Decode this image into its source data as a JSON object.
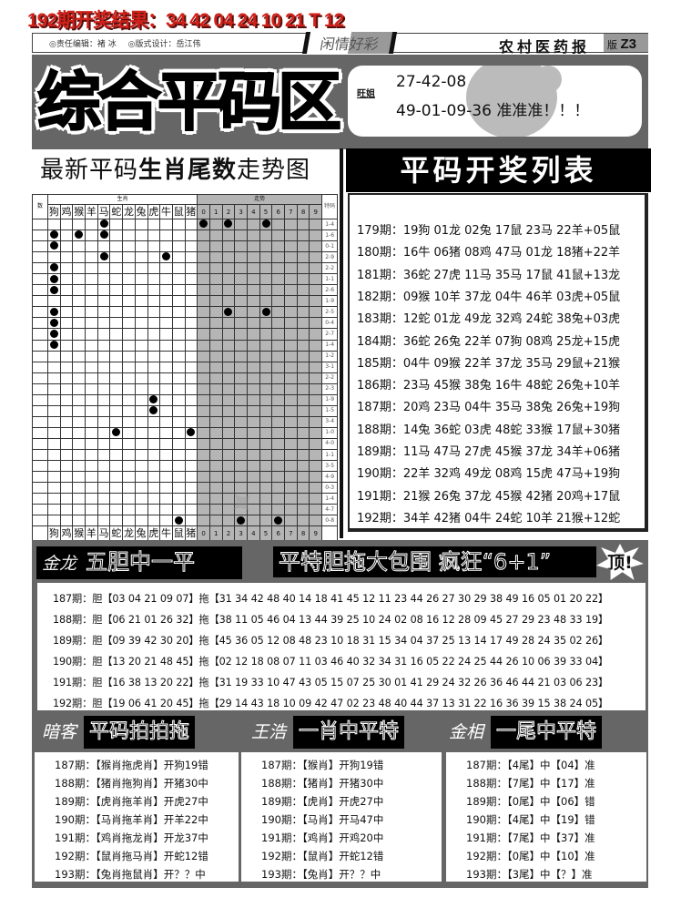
{
  "top_result": "192期开奖结果：34 42 04 24 10 21 T 12",
  "header": {
    "editor": "◎责任编辑：褚 冰",
    "designer": "◎版式设计：岳江伟",
    "column": "闲情好彩",
    "paper": "农村医药报",
    "edition_label": "版",
    "edition": "Z3"
  },
  "banner": {
    "title": "综合平码区",
    "tipster": "旺姐",
    "line1": "27-42-08",
    "line2": "49-01-09-36 准准准！！！"
  },
  "trend": {
    "title_plain": "最新平码",
    "title_bold": "生肖尾数",
    "title_end": "走势图",
    "col_num": "数",
    "group_zodiac": "生肖",
    "group_trend": "走势",
    "col_special": "特码",
    "zodiacs": [
      "狗",
      "鸡",
      "猴",
      "羊",
      "马",
      "蛇",
      "龙",
      "兔",
      "虎",
      "牛",
      "鼠",
      "猪"
    ],
    "digits": [
      "0",
      "1",
      "2",
      "3",
      "4",
      "5",
      "6",
      "7",
      "8",
      "9"
    ],
    "rows": [
      {
        "tm": "1-4",
        "z": [
          "马"
        ],
        "d": [
          0,
          2,
          5
        ]
      },
      {
        "tm": "1-6",
        "z": [
          "狗",
          "猴",
          "马"
        ],
        "d": []
      },
      {
        "tm": "0-1",
        "z": [
          "狗"
        ],
        "d": []
      },
      {
        "tm": "2-9",
        "z": [
          "马",
          "牛"
        ],
        "d": []
      },
      {
        "tm": "2-2",
        "z": [
          "狗"
        ],
        "d": []
      },
      {
        "tm": "1-1",
        "z": [
          "狗"
        ],
        "d": []
      },
      {
        "tm": "2-6",
        "z": [
          "狗"
        ],
        "d": []
      },
      {
        "tm": "1-9",
        "z": [],
        "d": []
      },
      {
        "tm": "2-5",
        "z": [
          "狗"
        ],
        "d": [
          2,
          5
        ]
      },
      {
        "tm": "0-4",
        "z": [
          "狗"
        ],
        "d": []
      },
      {
        "tm": "2-7",
        "z": [
          "狗"
        ],
        "d": []
      },
      {
        "tm": "1-4",
        "z": [
          "狗"
        ],
        "d": []
      },
      {
        "tm": "1-2",
        "z": [],
        "d": []
      },
      {
        "tm": "3-1",
        "z": [],
        "d": []
      },
      {
        "tm": "2-2",
        "z": [],
        "d": []
      },
      {
        "tm": "2-3",
        "z": [],
        "d": []
      },
      {
        "tm": "1-9",
        "z": [
          "虎"
        ],
        "d": []
      },
      {
        "tm": "1-5",
        "z": [
          "虎"
        ],
        "d": []
      },
      {
        "tm": "3-4",
        "z": [],
        "d": []
      },
      {
        "tm": "1-0",
        "z": [
          "蛇",
          "猪"
        ],
        "d": []
      },
      {
        "tm": "4-0",
        "z": [],
        "d": []
      },
      {
        "tm": "1-1",
        "z": [],
        "d": []
      },
      {
        "tm": "3-5",
        "z": [],
        "d": []
      },
      {
        "tm": "4-9",
        "z": [],
        "d": []
      },
      {
        "tm": "0-3",
        "z": [],
        "d": []
      },
      {
        "tm": "1-4",
        "z": [],
        "d": []
      },
      {
        "tm": "4-7",
        "z": [],
        "d": []
      },
      {
        "tm": "0-8",
        "z": [
          "鼠"
        ],
        "d": [
          3,
          6
        ]
      }
    ]
  },
  "draw_list": {
    "title": "平码开奖列表",
    "rows": [
      "179期：19狗 01龙 02兔 17鼠 23马 22羊+05鼠",
      "180期：16牛 06猪 08鸡 47马 01龙 18猪+22羊",
      "181期：36蛇 27虎 11马 35马 17鼠 41鼠+13龙",
      "182期：09猴 10羊 37龙 04牛 46羊 03虎+05鼠",
      "183期：12蛇 01龙 49龙 32鸡 24蛇 38兔+03虎",
      "184期：36蛇 26兔 22羊 07狗 08鸡 25龙+15虎",
      "185期：04牛 09猴 22羊 37龙 35马 29鼠+21猴",
      "186期：23马 45猴 38兔 16牛 48蛇 26兔+10羊",
      "187期：20鸡 23马 04牛 35马 38兔 26兔+19狗",
      "188期：14兔 36蛇 03虎 48蛇 33猴 17鼠+30猪",
      "189期：11马 47马 27虎 45猴 37龙 34羊+06猪",
      "190期：22羊 32鸡 49龙 08鸡 15虎 47马+19狗",
      "191期：21猴 26兔 37龙 45猴 42猪 20鸡+17鼠",
      "192期：34羊 42猪 04牛 24蛇 10羊 21猴+12蛇"
    ]
  },
  "dantuo": {
    "author": "金龙",
    "title": "五胆中一平",
    "slogan": "平特胆拖大包围 疯狂“6+1”",
    "badge": "顶!",
    "rows": [
      "187期：胆【03 04 21 09 07】拖【31 34 42 48 40 14 18 41 45 12 11 23 44 26 27 30 29 38 49 16 05 01 20 22】",
      "188期：胆【06 21 01 26 32】拖【38 11 05 46 04 13 44 39 25 10 24 02 08 16 12 28 09 45 27 29 23 48 33 19】",
      "189期：胆【09 39 42 30 20】拖【45 36 05 12 08 48 23 10 18 31 15 34 04 37 25 13 14 17 49 28 24 35 02 26】",
      "190期：胆【13 20 21 48 45】拖【02 12 18 08 07 11 03 46 40 32 34 31 16 05 22 24 25 44 26 10 06 39 33 04】",
      "191期：胆【16 38 13 20 22】拖【31 19 33 10 47 43 05 15 07 25 30 01 41 29 24 32 26 36 46 44 21 03 06 23】",
      "192期：胆【19 06 41 20 45】拖【29 14 43 18 10 09 42 47 02 23 48 40 44 37 13 31 22 16 36 39 15 38 24 05】"
    ]
  },
  "columns": [
    {
      "author": "暗客",
      "title": "平码拍拍拖",
      "rows": [
        "187期：【猴肖拖虎肖】开狗19错",
        "188期：【猪肖拖狗肖】开猪30中",
        "189期：【虎肖拖羊肖】开虎27中",
        "190期：【马肖拖羊肖】开羊22中",
        "191期：【鸡肖拖龙肖】开龙37中",
        "192期：【鼠肖拖马肖】开蛇12错",
        "193期：【兔肖拖鼠肖】开？？中"
      ]
    },
    {
      "author": "王浩",
      "title": "一肖中平特",
      "rows": [
        "187期：【猴肖】开狗19错",
        "188期：【猪肖】开猪30中",
        "189期：【虎肖】开虎27中",
        "190期：【马肖】开马47中",
        "191期：【鸡肖】开鸡20中",
        "192期：【鼠肖】开蛇12错",
        "193期：【兔肖】开？？中"
      ]
    },
    {
      "author": "金相",
      "title": "一尾中平特",
      "rows": [
        "187期：【4尾】中【04】准",
        "188期：【7尾】中【17】准",
        "189期：【0尾】中【06】错",
        "190期：【4尾】中【19】错",
        "191期：【7尾】中【37】准",
        "192期：【0尾】中【10】准",
        "193期：【3尾】中【？】准"
      ]
    }
  ],
  "colors": {
    "red_title": "#d0201a",
    "panel_gray": "#666666",
    "grid_gray": "#b5b5b5"
  }
}
